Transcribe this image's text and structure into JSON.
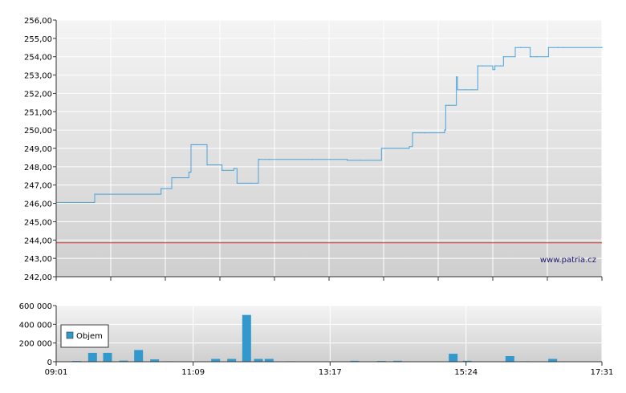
{
  "watermark": "www.patria.cz",
  "colors": {
    "price_line": "#4aa3d8",
    "reference_line": "#cc3333",
    "volume_bar": "#3399cc",
    "grid": "#ffffff",
    "plot_bg_top": "#f4f4f4",
    "plot_bg_bottom": "#cfcfcf"
  },
  "chart_data": [
    {
      "type": "line",
      "name": "price",
      "x_tick_labels": [
        "09:01",
        "11:09",
        "13:17",
        "15:24",
        "17:31"
      ],
      "y_tick_labels": [
        "242,00",
        "243,00",
        "244,00",
        "245,00",
        "246,00",
        "247,00",
        "248,00",
        "249,00",
        "250,00",
        "251,00",
        "252,00",
        "253,00",
        "254,00",
        "255,00",
        "256,00"
      ],
      "ylim": [
        242,
        256
      ],
      "xlim": [
        "09:01",
        "17:31"
      ],
      "grid": true,
      "reference_line": 243.85,
      "x": [
        "09:01",
        "09:36",
        "09:37",
        "10:36",
        "10:39",
        "10:49",
        "10:51",
        "11:05",
        "11:06",
        "11:07",
        "11:09",
        "11:12",
        "11:22",
        "11:35",
        "11:36",
        "11:47",
        "11:50",
        "11:55",
        "12:03",
        "12:10",
        "12:11",
        "12:20",
        "13:00",
        "13:17",
        "13:33",
        "13:45",
        "14:05",
        "14:08",
        "14:31",
        "14:34",
        "14:41",
        "14:45",
        "14:46",
        "15:04",
        "15:05",
        "15:08",
        "15:15",
        "15:16",
        "15:24",
        "15:30",
        "15:35",
        "15:39",
        "15:49",
        "15:51",
        "15:56",
        "15:59",
        "16:10",
        "16:15",
        "16:24",
        "16:30",
        "16:41",
        "16:50",
        "16:55",
        "17:31"
      ],
      "values": [
        246.05,
        246.05,
        246.5,
        246.5,
        246.8,
        247.4,
        247.4,
        247.7,
        247.7,
        249.2,
        249.2,
        249.2,
        248.1,
        248.1,
        247.8,
        247.9,
        247.1,
        247.1,
        247.1,
        248.4,
        248.4,
        248.4,
        248.4,
        248.4,
        248.35,
        248.35,
        249.0,
        249.0,
        249.1,
        249.85,
        249.85,
        249.85,
        249.85,
        250.0,
        251.35,
        251.35,
        252.9,
        252.2,
        252.2,
        252.2,
        253.5,
        253.5,
        253.3,
        253.5,
        253.5,
        254.0,
        254.5,
        254.5,
        254.0,
        254.0,
        254.5,
        254.5,
        254.5,
        254.5
      ]
    },
    {
      "type": "bar",
      "name": "volume",
      "legend": [
        "Objem"
      ],
      "x_tick_labels": [
        "09:01",
        "11:09",
        "13:17",
        "15:24",
        "17:31"
      ],
      "y_tick_labels": [
        "0",
        "200 000",
        "400 000",
        "600 000"
      ],
      "ylim": [
        0,
        600000
      ],
      "grid": true,
      "x": [
        "09:20",
        "09:35",
        "09:49",
        "10:04",
        "10:18",
        "10:33",
        "10:47",
        "11:02",
        "11:16",
        "11:30",
        "11:45",
        "11:59",
        "12:10",
        "12:20",
        "12:40",
        "13:05",
        "13:25",
        "13:40",
        "14:05",
        "14:20",
        "14:40",
        "14:55",
        "15:12",
        "15:25",
        "15:45",
        "15:55",
        "16:05",
        "16:20",
        "16:35",
        "16:45",
        "17:00",
        "17:15"
      ],
      "values": [
        8000,
        95000,
        95000,
        12000,
        125000,
        25000,
        5000,
        3000,
        2000,
        30000,
        30000,
        500000,
        30000,
        30000,
        5000,
        3000,
        2000,
        10000,
        8000,
        10000,
        3000,
        2000,
        85000,
        10000,
        3000,
        4000,
        60000,
        5000,
        3000,
        30000,
        4000,
        2000
      ]
    }
  ]
}
